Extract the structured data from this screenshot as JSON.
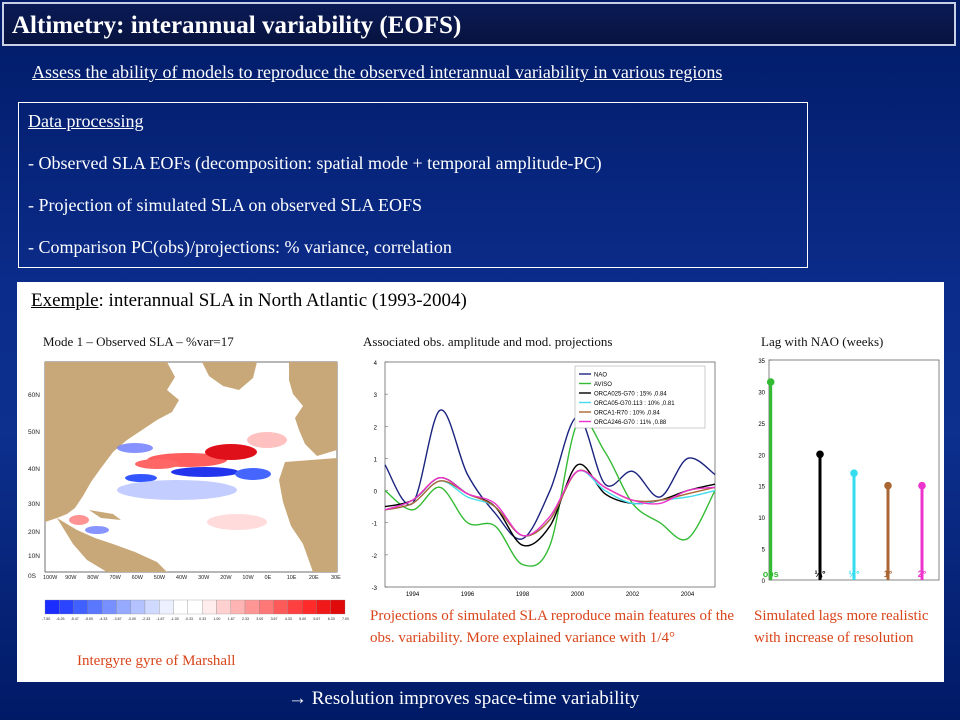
{
  "header": {
    "title": "Altimetry: interannual variability (EOFS)"
  },
  "subtitle": "Assess the ability of models to reproduce the observed interannual variability in various regions",
  "processing": {
    "heading": "Data processing",
    "lines": [
      "- Observed SLA EOFs (decomposition: spatial mode + temporal amplitude-PC)",
      "- Projection of simulated SLA on observed SLA EOFS",
      "- Comparison PC(obs)/projections: % variance, correlation"
    ]
  },
  "example": {
    "label": "Exemple",
    "rest": ": interannual SLA in North Atlantic (1993-2004)"
  },
  "map": {
    "caption": "Mode 1 – Observed SLA –  %var=17",
    "lat_labels": [
      "60N",
      "50N",
      "40N",
      "30N",
      "20N",
      "10N",
      "0S"
    ],
    "lon_labels": [
      "100W",
      "90W",
      "80W",
      "70W",
      "60W",
      "50W",
      "40W",
      "30W",
      "20W",
      "10W",
      "0E",
      "10E",
      "20E",
      "30E"
    ],
    "colorbar_labels": [
      "-7.50",
      "-6.25",
      "-5.47",
      "-5.00",
      "-4.33",
      "-3.67",
      "-3.00",
      "-2.33",
      "-1.67",
      "-1.00",
      "-0.33",
      "0.33",
      "1.00",
      "1.67",
      "2.33",
      "3.00",
      "3.67",
      "4.33",
      "5.00",
      "5.67",
      "6.33",
      "7.00"
    ],
    "note": "Intergyre gyre of Marshall"
  },
  "chart_data": [
    {
      "type": "line",
      "title": "Associated obs. amplitude and mod. projections",
      "ylim": [
        -3,
        4
      ],
      "yticks": [
        -3,
        -2,
        -1,
        0,
        1,
        2,
        3,
        4
      ],
      "xticks": [
        "1994",
        "1996",
        "1998",
        "2000",
        "2002",
        "2004"
      ],
      "x": [
        1993,
        1994,
        1995,
        1996,
        1997,
        1998,
        1999,
        2000,
        2001,
        2002,
        2003,
        2004,
        2005
      ],
      "series": [
        {
          "name": "NAO",
          "color": "#1a237e",
          "values": [
            0.8,
            -0.4,
            2.5,
            0.5,
            -0.7,
            -1.5,
            0.0,
            2.3,
            0.2,
            0.6,
            -0.2,
            1.0,
            0.5
          ]
        },
        {
          "name": "AVISO",
          "color": "#33bb33",
          "values": [
            0.0,
            -0.6,
            0.1,
            -1.0,
            -1.1,
            -2.3,
            -1.7,
            2.1,
            1.2,
            -0.4,
            -1.0,
            -1.5,
            0.0
          ]
        },
        {
          "name": "ORCA025-G70 : 15% ,0.84",
          "color": "#000000",
          "values": [
            -0.5,
            -0.3,
            0.4,
            -0.1,
            -0.5,
            -1.7,
            -1.1,
            0.8,
            -0.1,
            -0.4,
            -0.3,
            0.0,
            0.2
          ]
        },
        {
          "name": "ORCA05-G70.113 : 10% ,0.81",
          "color": "#44ddee",
          "values": [
            -0.6,
            -0.4,
            0.3,
            -0.2,
            -0.5,
            -1.4,
            -0.9,
            0.6,
            0.0,
            -0.4,
            -0.3,
            -0.2,
            0.0
          ]
        },
        {
          "name": "ORCA1-R70 : 10% ,0.84",
          "color": "#aa6633",
          "values": [
            -0.6,
            -0.4,
            0.3,
            -0.1,
            -0.5,
            -1.4,
            -0.9,
            0.6,
            0.1,
            -0.3,
            -0.3,
            -0.1,
            0.1
          ]
        },
        {
          "name": "ORCA246-G70 : 11% ,0.88",
          "color": "#ee33cc",
          "values": [
            -0.6,
            -0.3,
            0.4,
            -0.1,
            -0.4,
            -1.4,
            -0.8,
            0.6,
            0.1,
            -0.3,
            -0.4,
            0.0,
            0.1
          ]
        }
      ],
      "note": "Projections of simulated SLA reproduce main features of the obs. variability. More explained variance with 1/4°"
    },
    {
      "type": "bar",
      "title": "Lag with NAO (weeks)",
      "ylim": [
        0,
        35
      ],
      "yticks": [
        0,
        5,
        10,
        15,
        20,
        25,
        30,
        35
      ],
      "categories": [
        "obs",
        "¼°",
        "½°",
        "1°",
        "2°"
      ],
      "values": [
        31.5,
        20,
        17,
        15,
        15
      ],
      "colors": [
        "#33bb33",
        "#000000",
        "#33ddee",
        "#aa6633",
        "#ee33cc"
      ],
      "note": "Simulated lags more realistic with increase of resolution"
    }
  ],
  "conclusion": " Resolution improves space-time variability"
}
